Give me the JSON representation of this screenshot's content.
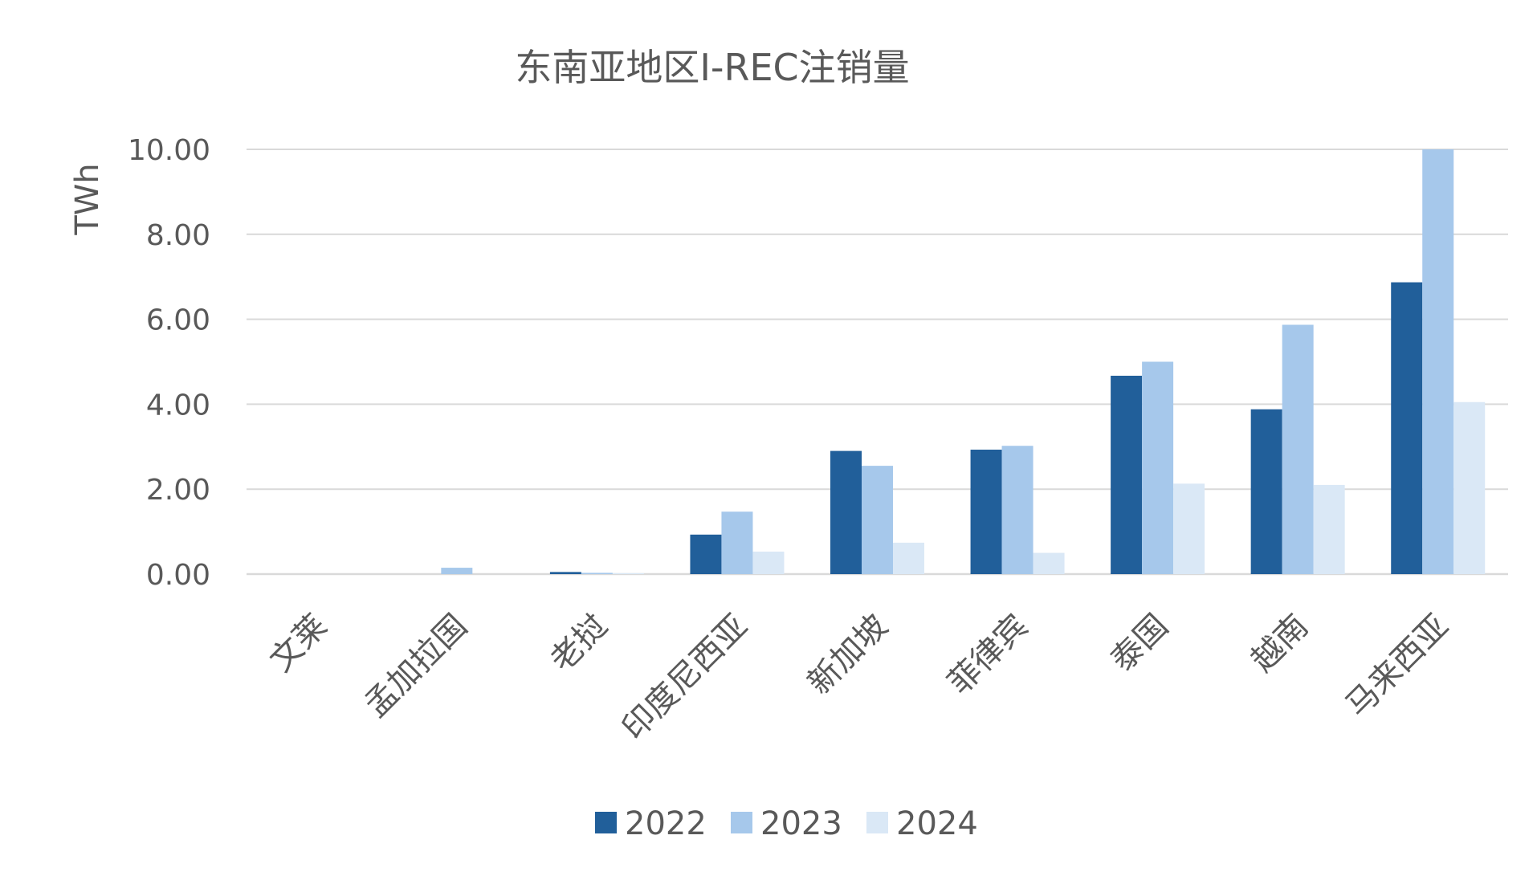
{
  "chart_data": {
    "type": "bar",
    "title": "东南亚地区I-REC注销量",
    "ylabel": "TWh",
    "xlabel": "",
    "ylim": [
      0,
      10
    ],
    "yticks": [
      "0.00",
      "2.00",
      "4.00",
      "6.00",
      "8.00",
      "10.00"
    ],
    "categories": [
      "文莱",
      "孟加拉国",
      "老挝",
      "印度尼西亚",
      "新加坡",
      "菲律宾",
      "泰国",
      "越南",
      "马来西亚"
    ],
    "series": [
      {
        "name": "2022",
        "color": "#215f9a",
        "values": [
          0,
          0,
          0.05,
          0.93,
          2.9,
          2.93,
          4.67,
          3.88,
          6.87
        ]
      },
      {
        "name": "2023",
        "color": "#a6c8eb",
        "values": [
          0,
          0.15,
          0.03,
          1.47,
          2.55,
          3.02,
          5.0,
          5.87,
          10.0
        ]
      },
      {
        "name": "2024",
        "color": "#dae8f6",
        "values": [
          0,
          0,
          0.02,
          0.53,
          0.74,
          0.5,
          2.13,
          2.1,
          4.05
        ]
      }
    ],
    "grid": true,
    "legend_position": "bottom"
  }
}
